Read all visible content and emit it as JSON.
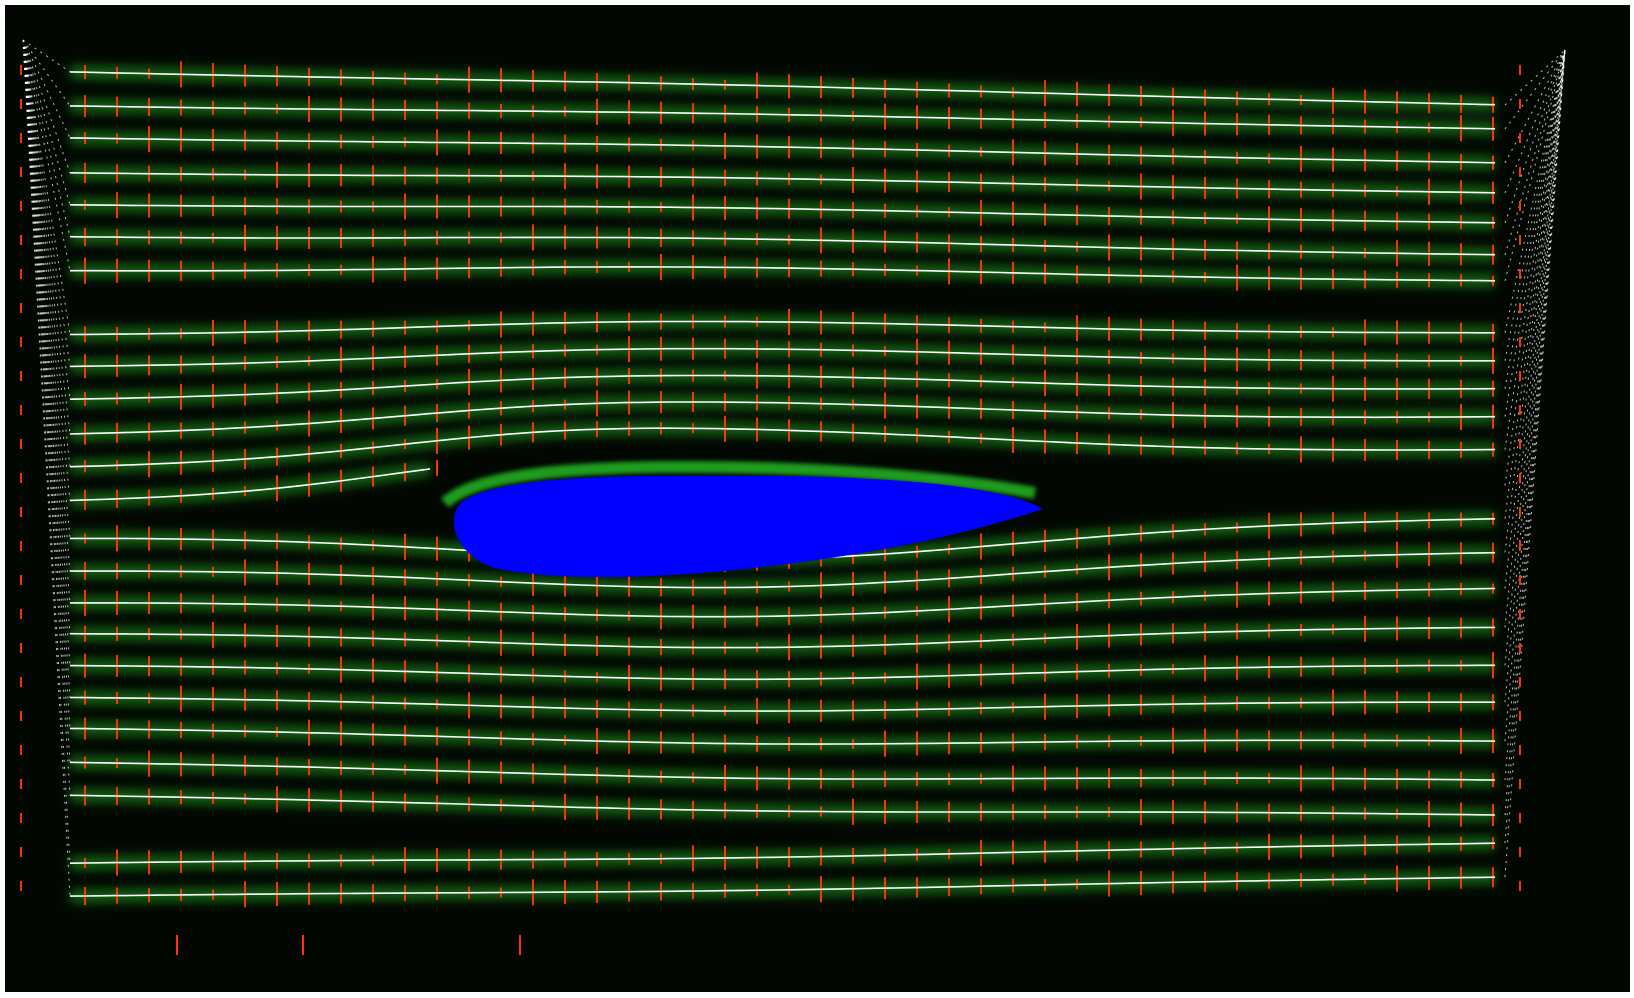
{
  "image": {
    "subject": "airfoil-streamline-flow-visualization",
    "colors": {
      "background": "#020702",
      "glow": "#1fa51f",
      "glow_bright": "#33ff33",
      "streamline": "#ffffff",
      "tick": "#ff3300",
      "airfoil": "#0000ff"
    }
  }
}
